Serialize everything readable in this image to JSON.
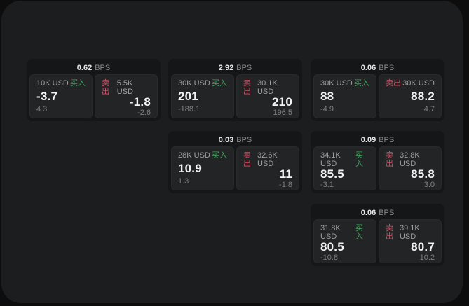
{
  "labels": {
    "bps": "BPS",
    "buy": "买入",
    "sell": "卖出"
  },
  "colors": {
    "buy": "#3fa65c",
    "sell": "#cc5266"
  },
  "cards": [
    {
      "bps": "0.62",
      "buy": {
        "size": "10K USD",
        "price": "-3.7",
        "delta": "4.3"
      },
      "sell": {
        "size": "5.5K USD",
        "price": "-1.8",
        "delta": "-2.6"
      }
    },
    {
      "bps": "2.92",
      "buy": {
        "size": "30K USD",
        "price": "201",
        "delta": "-188.1"
      },
      "sell": {
        "size": "30.1K USD",
        "price": "210",
        "delta": "196.5"
      }
    },
    {
      "bps": "0.06",
      "buy": {
        "size": "30K USD",
        "price": "88",
        "delta": "-4.9"
      },
      "sell": {
        "size": "30K USD",
        "price": "88.2",
        "delta": "4.7"
      }
    },
    {
      "bps": "0.03",
      "buy": {
        "size": "28K USD",
        "price": "10.9",
        "delta": "1.3"
      },
      "sell": {
        "size": "32.6K USD",
        "price": "11",
        "delta": "-1.8"
      }
    },
    {
      "bps": "0.09",
      "buy": {
        "size": "34.1K USD",
        "price": "85.5",
        "delta": "-3.1"
      },
      "sell": {
        "size": "32.8K USD",
        "price": "85.8",
        "delta": "3.0"
      }
    },
    {
      "bps": "0.06",
      "buy": {
        "size": "31.8K USD",
        "price": "80.5",
        "delta": "-10.8"
      },
      "sell": {
        "size": "39.1K USD",
        "price": "80.7",
        "delta": "10.2"
      }
    }
  ]
}
